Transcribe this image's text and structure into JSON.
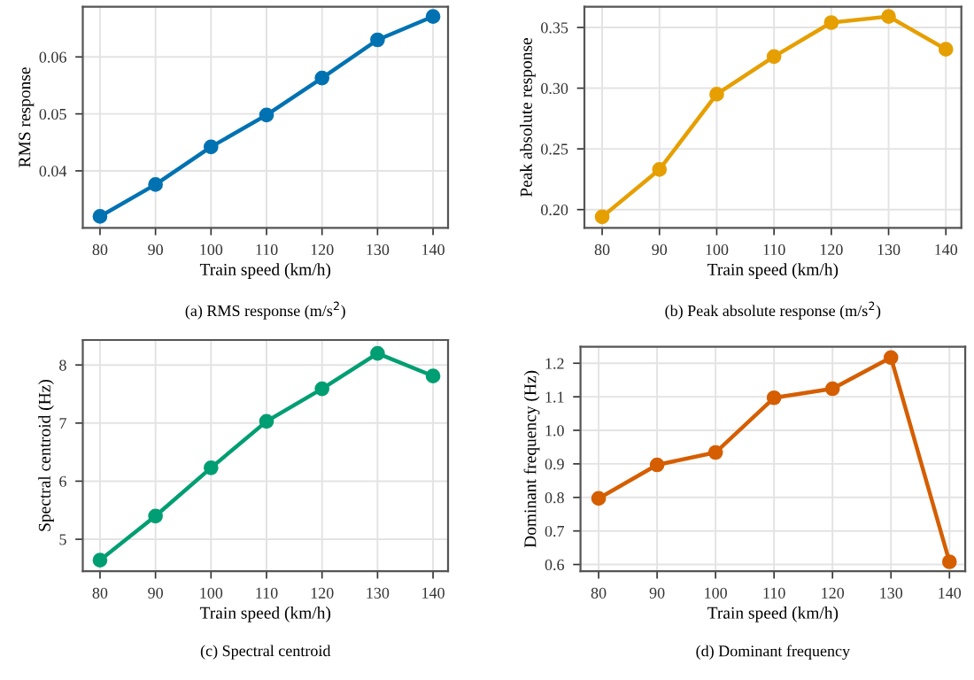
{
  "chart_data": [
    {
      "type": "line",
      "xlabel": "Train speed (km/h)",
      "ylabel": "RMS response",
      "annotations": [
        "(a) RMS response (m/s$^{2}$)"
      ],
      "x": [
        80,
        90,
        100,
        110,
        120,
        130,
        140
      ],
      "series": [
        {
          "color": "#0072b2",
          "values": [
            0.032,
            0.0376,
            0.0442,
            0.0498,
            0.0563,
            0.063,
            0.0671
          ]
        }
      ],
      "xlim": [
        76.9,
        142.7
      ],
      "xticks": [
        80,
        90,
        100,
        110,
        120,
        130,
        140
      ],
      "ylim": [
        0.03,
        0.0688
      ],
      "yticks": [
        0.04,
        0.05,
        0.06
      ],
      "grid": true,
      "marker": "circle",
      "line_style": "solid"
    },
    {
      "type": "line",
      "xlabel": "Train speed (km/h)",
      "ylabel": "Peak absolute response",
      "annotations": [
        "(b) Peak absolute response (m/s$^{2}$)"
      ],
      "x": [
        80,
        90,
        100,
        110,
        120,
        130,
        140
      ],
      "series": [
        {
          "color": "#e69f00",
          "values": [
            0.194,
            0.233,
            0.295,
            0.326,
            0.354,
            0.359,
            0.332
          ]
        }
      ],
      "xlim": [
        76.9,
        142.7
      ],
      "xticks": [
        80,
        90,
        100,
        110,
        120,
        130,
        140
      ],
      "ylim": [
        0.185,
        0.367
      ],
      "yticks": [
        {
          "value": 0.2,
          "label": "0.20"
        },
        0.25,
        {
          "value": 0.3,
          "label": "0.30"
        },
        0.35
      ],
      "grid": true,
      "marker": "circle",
      "line_style": "solid"
    },
    {
      "type": "line",
      "xlabel": "Train speed (km/h)",
      "ylabel": "Spectral centroid (Hz)",
      "annotations": [
        "(c) Spectral centroid"
      ],
      "x": [
        80,
        90,
        100,
        110,
        120,
        130,
        140
      ],
      "series": [
        {
          "color": "#009e73",
          "values": [
            4.64,
            5.4,
            6.23,
            7.03,
            7.59,
            8.2,
            7.81
          ]
        }
      ],
      "xlim": [
        76.9,
        142.7
      ],
      "xticks": [
        80,
        90,
        100,
        110,
        120,
        130,
        140
      ],
      "ylim": [
        4.45,
        8.43
      ],
      "yticks": [
        5,
        6,
        7,
        8
      ],
      "grid": true,
      "marker": "circle",
      "line_style": "solid"
    },
    {
      "type": "line",
      "xlabel": "Train speed (km/h)",
      "ylabel": "Dominant frequency (Hz)",
      "annotations": [
        "(d) Dominant frequency"
      ],
      "x": [
        80,
        90,
        100,
        110,
        120,
        130,
        140
      ],
      "series": [
        {
          "color": "#d55e00",
          "values": [
            0.797,
            0.897,
            0.934,
            1.097,
            1.124,
            1.217,
            0.608
          ]
        }
      ],
      "xlim": [
        76.9,
        142.7
      ],
      "xticks": [
        80,
        90,
        100,
        110,
        120,
        130,
        140
      ],
      "ylim": [
        0.58,
        1.249
      ],
      "yticks": [
        0.6,
        0.7,
        0.8,
        0.9,
        {
          "value": 1.0,
          "label": "1.0"
        },
        1.1,
        1.2
      ],
      "grid": true,
      "marker": "circle",
      "line_style": "solid"
    }
  ]
}
